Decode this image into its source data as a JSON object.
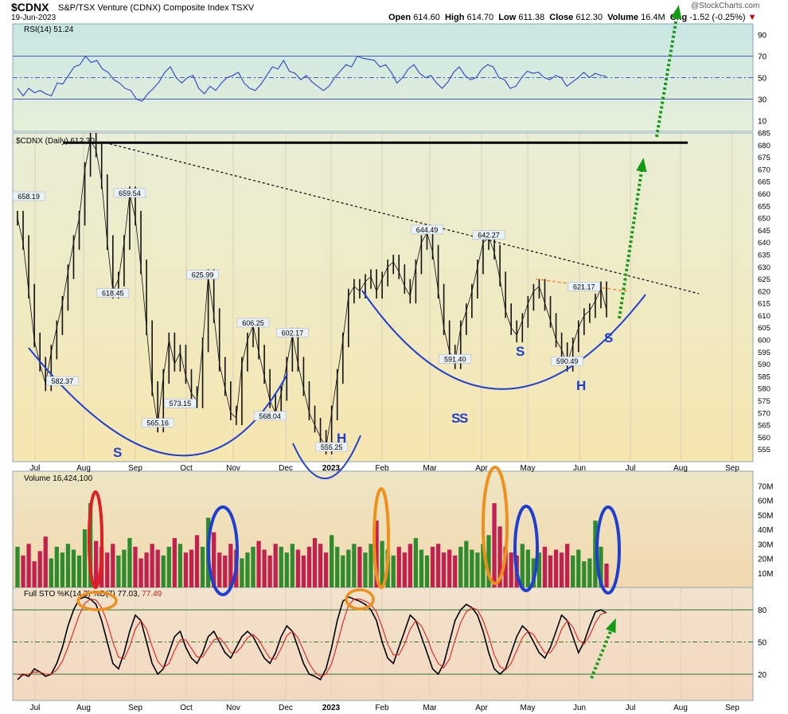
{
  "header": {
    "symbol": "$CDNX",
    "name": "S&P/TSX Venture (CDNX) Composite Index",
    "exchange": "TSXV",
    "date": "19-Jun-2023",
    "open_label": "Open",
    "open": "614.60",
    "high_label": "High",
    "high": "614.70",
    "low_label": "Low",
    "low": "611.38",
    "close_label": "Close",
    "close": "612.30",
    "volume_label": "Volume",
    "volume": "16.4M",
    "chg_label": "Chg",
    "chg": "-1.52 (-0.25%)",
    "credit": "@StockCharts.com"
  },
  "chart_data": [
    {
      "type": "line",
      "panel": "rsi",
      "legend": "RSI(14) 51.24",
      "ylim": [
        0,
        100
      ],
      "ticks": [
        "10",
        "30",
        "50",
        "70",
        "90"
      ],
      "reference_lines": [
        30,
        50,
        70
      ],
      "series": [
        {
          "name": "RSI(14)",
          "values": [
            40,
            33,
            40,
            36,
            38,
            35,
            33,
            45,
            44,
            52,
            60,
            62,
            70,
            64,
            66,
            58,
            55,
            48,
            45,
            40,
            38,
            30,
            28,
            35,
            40,
            46,
            55,
            60,
            50,
            45,
            50,
            52,
            40,
            35,
            42,
            38,
            45,
            50,
            52,
            55,
            45,
            40,
            38,
            44,
            52,
            60,
            58,
            66,
            56,
            54,
            48,
            52,
            46,
            42,
            38,
            42,
            50,
            56,
            62,
            60,
            70,
            68,
            67,
            66,
            60,
            62,
            55,
            45,
            50,
            58,
            62,
            54,
            50,
            52,
            45,
            40,
            46,
            55,
            60,
            52,
            48,
            50,
            58,
            62,
            60,
            50,
            48,
            40,
            42,
            50,
            56,
            54,
            55,
            50,
            48,
            52,
            50,
            42,
            46,
            50,
            55,
            50,
            54,
            52,
            51.24
          ]
        }
      ]
    },
    {
      "type": "line",
      "panel": "price",
      "legend": "$CDNX (Daily) 612.30",
      "ylim": [
        550,
        685
      ],
      "ticks": [
        "555",
        "560",
        "565",
        "570",
        "575",
        "580",
        "585",
        "590",
        "595",
        "600",
        "605",
        "610",
        "615",
        "620",
        "625",
        "630",
        "635",
        "640",
        "645",
        "650",
        "655",
        "660",
        "665",
        "670",
        "675",
        "680",
        "685"
      ],
      "series": [
        {
          "name": "$CDNX (Daily)",
          "values": [
            650,
            640,
            620,
            600,
            590,
            582,
            595,
            605,
            615,
            628,
            640,
            650,
            670,
            682,
            678,
            665,
            640,
            620,
            625,
            640,
            660,
            650,
            630,
            605,
            580,
            565,
            585,
            600,
            590,
            595,
            585,
            578,
            575,
            598,
            626,
            610,
            590,
            580,
            570,
            568,
            590,
            600,
            606,
            595,
            585,
            575,
            570,
            578,
            590,
            602,
            590,
            580,
            570,
            565,
            560,
            556,
            570,
            585,
            600,
            618,
            622,
            620,
            624,
            626,
            620,
            625,
            630,
            632,
            628,
            622,
            618,
            630,
            640,
            644,
            636,
            620,
            605,
            595,
            591,
            605,
            612,
            620,
            630,
            640,
            642,
            636,
            625,
            612,
            605,
            602,
            608,
            615,
            620,
            622,
            615,
            608,
            600,
            596,
            590,
            598,
            605,
            610,
            612,
            616,
            621,
            612.3
          ]
        }
      ],
      "annotations": {
        "price_labels": [
          {
            "text": "658.19",
            "x": 2,
            "y": 658.19
          },
          {
            "text": "582.37",
            "x": 8,
            "y": 582.37
          },
          {
            "text": "659.54",
            "x": 20,
            "y": 659.54
          },
          {
            "text": "618.45",
            "x": 17,
            "y": 618.45
          },
          {
            "text": "625.99",
            "x": 33,
            "y": 625.99
          },
          {
            "text": "565.16",
            "x": 25,
            "y": 565.16
          },
          {
            "text": "573.15",
            "x": 29,
            "y": 573.15
          },
          {
            "text": "606.25",
            "x": 42,
            "y": 606.25
          },
          {
            "text": "602.17",
            "x": 49,
            "y": 602.17
          },
          {
            "text": "568.04",
            "x": 45,
            "y": 568.04
          },
          {
            "text": "555.25",
            "x": 56,
            "y": 555.25
          },
          {
            "text": "644.49",
            "x": 73,
            "y": 644.49
          },
          {
            "text": "591.40",
            "x": 78,
            "y": 591.4
          },
          {
            "text": "642.27",
            "x": 84,
            "y": 642.27
          },
          {
            "text": "621.17",
            "x": 101,
            "y": 621.17
          },
          {
            "text": "590.49",
            "x": 98,
            "y": 590.49
          }
        ],
        "pattern_letters": [
          "S",
          "H",
          "S",
          "S",
          "S",
          "H",
          "S"
        ]
      }
    },
    {
      "type": "bar",
      "panel": "volume",
      "legend": "Volume 16,424,100",
      "ylim": [
        0,
        80
      ],
      "ticks": [
        "10M",
        "20M",
        "30M",
        "40M",
        "50M",
        "60M",
        "70M"
      ],
      "values": [
        28,
        22,
        30,
        18,
        25,
        35,
        20,
        28,
        24,
        30,
        26,
        22,
        40,
        58,
        32,
        28,
        24,
        30,
        22,
        26,
        34,
        28,
        20,
        24,
        30,
        26,
        22,
        28,
        34,
        30,
        24,
        26,
        36,
        28,
        48,
        38,
        24,
        22,
        30,
        26,
        20,
        24,
        28,
        32,
        26,
        22,
        30,
        28,
        24,
        30,
        26,
        22,
        28,
        34,
        30,
        24,
        36,
        28,
        22,
        26,
        30,
        28,
        24,
        30,
        46,
        32,
        26,
        22,
        28,
        24,
        30,
        34,
        26,
        22,
        28,
        30,
        24,
        26,
        22,
        28,
        32,
        26,
        24,
        30,
        36,
        58,
        42,
        28,
        24,
        22,
        30,
        26,
        20,
        24,
        28,
        22,
        26,
        24,
        30,
        22,
        26,
        18,
        20,
        46,
        28,
        16.4
      ]
    },
    {
      "type": "line",
      "panel": "stochastic",
      "legend_prefix": "Full STO %K(14,3) %D(7)",
      "legend_k": "77.03",
      "legend_d": "77.49",
      "ylim": [
        0,
        100
      ],
      "ticks": [
        "20",
        "50",
        "80"
      ],
      "reference_lines": [
        20,
        50,
        80
      ],
      "series": [
        {
          "name": "%K",
          "values": [
            15,
            20,
            18,
            25,
            22,
            18,
            20,
            30,
            45,
            65,
            80,
            90,
            92,
            90,
            85,
            70,
            50,
            30,
            25,
            40,
            60,
            75,
            70,
            50,
            30,
            20,
            25,
            40,
            55,
            60,
            45,
            35,
            30,
            40,
            55,
            60,
            50,
            40,
            35,
            45,
            55,
            60,
            55,
            45,
            35,
            30,
            40,
            55,
            65,
            60,
            45,
            30,
            20,
            18,
            15,
            25,
            45,
            70,
            88,
            92,
            90,
            88,
            85,
            80,
            70,
            50,
            35,
            30,
            45,
            60,
            75,
            70,
            55,
            40,
            25,
            20,
            30,
            50,
            70,
            80,
            85,
            82,
            75,
            60,
            40,
            25,
            20,
            25,
            40,
            55,
            65,
            60,
            50,
            40,
            35,
            45,
            60,
            75,
            70,
            55,
            40,
            50,
            65,
            78,
            80,
            77.03
          ]
        },
        {
          "name": "%D",
          "values": [
            20,
            19,
            20,
            22,
            22,
            20,
            20,
            24,
            32,
            45,
            60,
            75,
            86,
            90,
            89,
            82,
            68,
            50,
            36,
            34,
            46,
            62,
            70,
            62,
            46,
            32,
            26,
            30,
            42,
            52,
            52,
            44,
            36,
            36,
            44,
            52,
            54,
            48,
            40,
            40,
            46,
            54,
            57,
            52,
            43,
            35,
            34,
            44,
            56,
            60,
            54,
            42,
            30,
            22,
            18,
            20,
            30,
            48,
            68,
            84,
            90,
            90,
            88,
            85,
            78,
            64,
            48,
            38,
            38,
            48,
            62,
            70,
            65,
            54,
            40,
            30,
            26,
            34,
            52,
            68,
            78,
            82,
            80,
            70,
            55,
            38,
            27,
            24,
            30,
            42,
            54,
            60,
            57,
            48,
            40,
            40,
            48,
            62,
            70,
            64,
            52,
            48,
            56,
            68,
            76,
            77.49
          ]
        }
      ]
    }
  ],
  "x_axis": {
    "ticks_top": [
      "Jul",
      "Aug",
      "Sep",
      "Oct",
      "Nov",
      "Dec",
      "2023",
      "Feb",
      "Mar",
      "Apr",
      "May",
      "Jun",
      "Jul",
      "Aug",
      "Sep"
    ],
    "ticks_bottom": [
      "Jul",
      "Aug",
      "Sep",
      "Oct",
      "Nov",
      "Dec",
      "2023",
      "Feb",
      "Mar",
      "Apr",
      "May",
      "Jun",
      "Jul",
      "Aug",
      "Sep"
    ]
  },
  "colors": {
    "rsi_bg": "#d6ebe6",
    "price_bg": "#f4ecbc",
    "vol_bg": "#f2dcb4",
    "sto_bg": "#f4dcc6",
    "rsi_line": "#3b4fc9",
    "price_line": "#111111",
    "up_bar": "#2e8b2e",
    "down_bar": "#c2204f",
    "sto_k": "#000000",
    "sto_d": "#e02020",
    "arc": "#1f3fd0",
    "arrow": "#159a15"
  }
}
